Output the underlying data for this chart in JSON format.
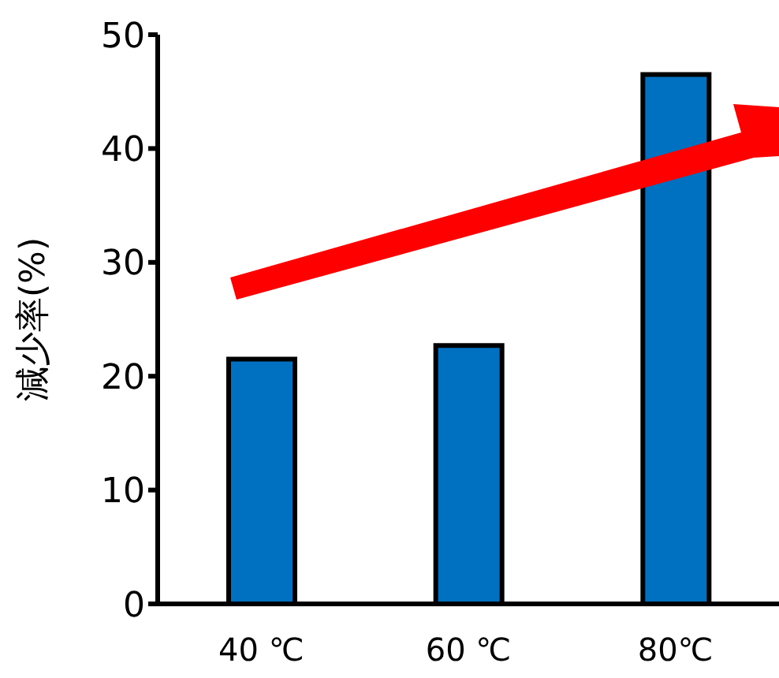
{
  "chart_data": {
    "type": "bar",
    "ylabel": "減少率(%)",
    "categories": [
      "40 ℃",
      "60 ℃",
      "80℃"
    ],
    "values": [
      21.5,
      22.7,
      46.5
    ],
    "color": "#0070c0",
    "ylim": [
      0,
      50
    ],
    "yticks": [
      0,
      10,
      20,
      30,
      40,
      50
    ]
  }
}
